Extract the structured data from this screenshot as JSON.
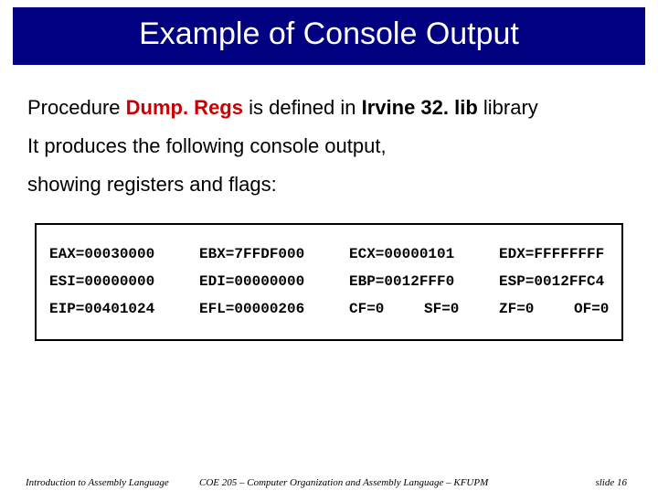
{
  "title": "Example of Console Output",
  "body": {
    "line1_pre": "Procedure ",
    "line1_proc": "Dump. Regs",
    "line1_mid": " is defined in ",
    "line1_lib": "Irvine 32. lib",
    "line1_post": " library",
    "line2": "It produces the following console output,",
    "line3": "showing registers and flags:"
  },
  "console": {
    "r1c1": "EAX=00030000",
    "r1c2": "EBX=7FFDF000",
    "r1c3": "ECX=00000101",
    "r1c4": "EDX=FFFFFFFF",
    "r2c1": "ESI=00000000",
    "r2c2": "EDI=00000000",
    "r2c3": "EBP=0012FFF0",
    "r2c4": "ESP=0012FFC4",
    "r3c1": "EIP=00401024",
    "r3c2": "EFL=00000206",
    "r3f1": "CF=0",
    "r3f2": "SF=0",
    "r3f3": "ZF=0",
    "r3f4": "OF=0"
  },
  "footer": {
    "left": "Introduction to Assembly Language",
    "center": "COE 205 – Computer Organization and Assembly Language – KFUPM",
    "right": "slide 16"
  },
  "colors": {
    "title_bg": "#000080",
    "title_fg": "#ffffff",
    "accent": "#cc0000",
    "border": "#000000",
    "text": "#000000",
    "bg": "#ffffff"
  }
}
